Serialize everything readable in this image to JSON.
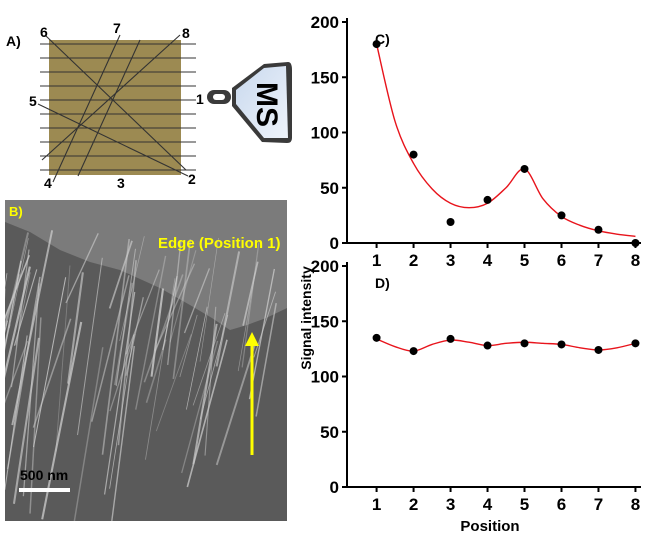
{
  "panel_a": {
    "label": "A)",
    "numbers": [
      "6",
      "7",
      "8",
      "5",
      "1",
      "4",
      "3",
      "2"
    ],
    "ms_label": "MS"
  },
  "panel_b": {
    "label": "B)",
    "annotation": "Edge (Position 1)",
    "scale_bar": "500 nm"
  },
  "colors": {
    "sample": "#9c8a52",
    "fit_line": "#e8141c",
    "annotation": "#ffff00",
    "points": "#000000"
  },
  "chart_data": [
    {
      "type": "scatter",
      "title": "C)",
      "x": [
        1,
        2,
        3,
        4,
        5,
        6,
        7,
        8
      ],
      "values": [
        180,
        80,
        19,
        39,
        67,
        25,
        12,
        0
      ],
      "fit": [
        [
          1,
          180
        ],
        [
          1.5,
          110
        ],
        [
          2,
          72
        ],
        [
          2.5,
          49
        ],
        [
          3,
          36
        ],
        [
          3.5,
          32
        ],
        [
          4,
          36
        ],
        [
          4.5,
          50
        ],
        [
          5,
          67
        ],
        [
          5.5,
          40
        ],
        [
          6,
          24
        ],
        [
          6.5,
          16
        ],
        [
          7,
          11
        ],
        [
          7.5,
          8
        ],
        [
          8,
          6
        ]
      ],
      "xticks": [
        "1",
        "2",
        "3",
        "4",
        "5",
        "6",
        "7",
        "8"
      ],
      "yticks": [
        "0",
        "50",
        "100",
        "150",
        "200"
      ],
      "ylim": [
        0,
        200
      ],
      "xlim": [
        0.2,
        8.15
      ]
    },
    {
      "type": "scatter",
      "title": "D)",
      "x": [
        1,
        2,
        3,
        4,
        5,
        6,
        7,
        8
      ],
      "values": [
        135,
        123,
        134,
        128,
        130,
        129,
        124,
        130
      ],
      "fit": [
        [
          1,
          134
        ],
        [
          1.5,
          127
        ],
        [
          2,
          123
        ],
        [
          2.5,
          129
        ],
        [
          3,
          133
        ],
        [
          3.5,
          131
        ],
        [
          4,
          128
        ],
        [
          4.5,
          130
        ],
        [
          5,
          131
        ],
        [
          5.5,
          130
        ],
        [
          6,
          129
        ],
        [
          6.5,
          126
        ],
        [
          7,
          124
        ],
        [
          7.5,
          126
        ],
        [
          8,
          130
        ]
      ],
      "xticks": [
        "1",
        "2",
        "3",
        "4",
        "5",
        "6",
        "7",
        "8"
      ],
      "yticks": [
        "0",
        "50",
        "100",
        "150",
        "200"
      ],
      "ylim": [
        0,
        200
      ],
      "xlim": [
        0.2,
        8.15
      ],
      "xlabel": "Position"
    }
  ],
  "shared_ylabel": "Signal intensity"
}
